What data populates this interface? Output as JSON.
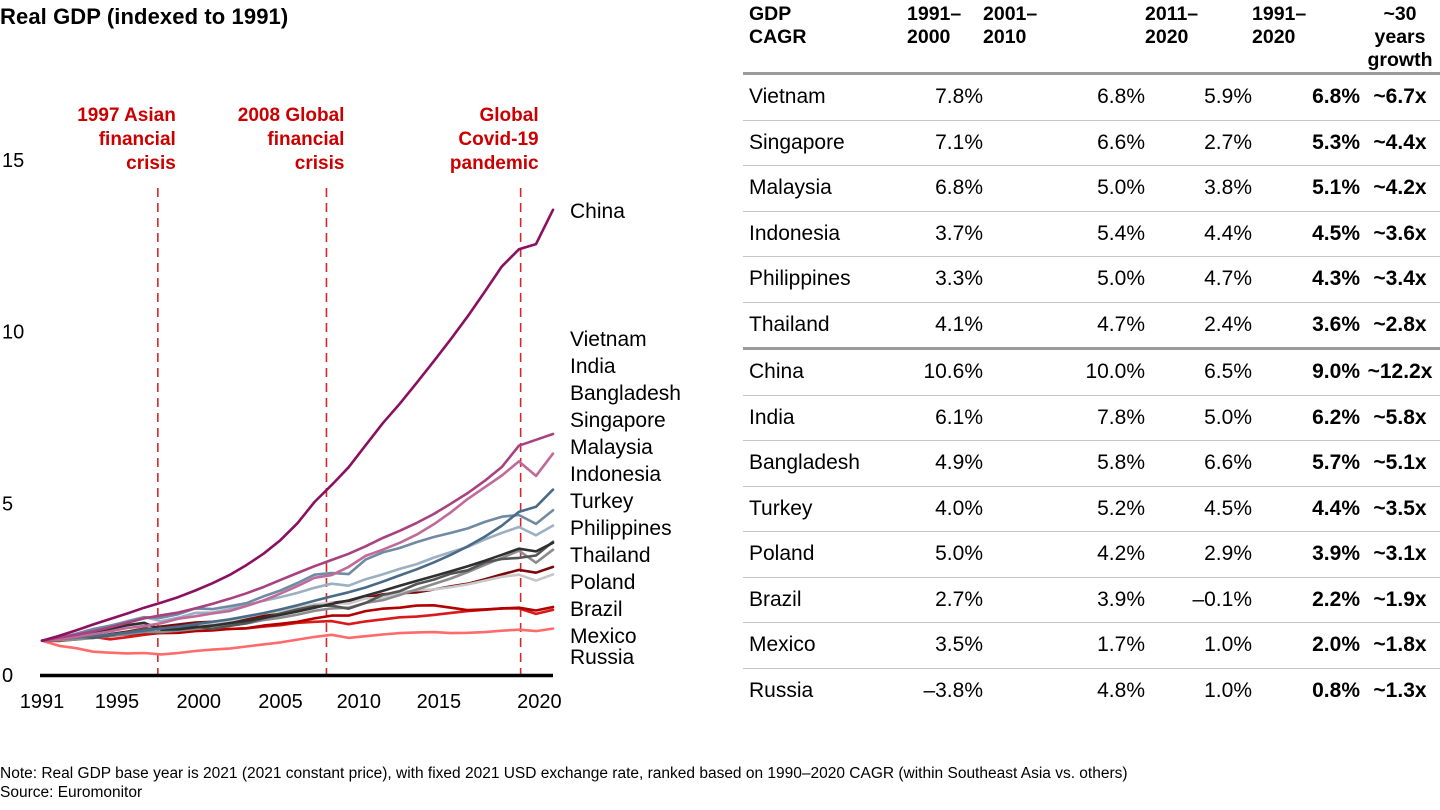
{
  "chart_data": {
    "type": "line",
    "title": "Real GDP (indexed to 1991)",
    "xlabel": "",
    "ylabel": "",
    "xlim": [
      1991,
      2021
    ],
    "ylim": [
      0,
      15
    ],
    "x_ticks": [
      "1991",
      "1995",
      "2000",
      "2005",
      "2010",
      "2015",
      "2020"
    ],
    "x_tick_years": [
      1991,
      1995.4,
      2000.2,
      2005,
      2009.6,
      2014.3,
      2020.2
    ],
    "y_ticks": [
      "0",
      "5",
      "10",
      "15"
    ],
    "y_tick_values": [
      0,
      5,
      10,
      15
    ],
    "grid": false,
    "events": [
      {
        "year": 1997,
        "label_lines": [
          "1997 Asian",
          "financial",
          "crisis"
        ],
        "color": "#cc0000"
      },
      {
        "year": 2008,
        "label_lines": [
          "2008 Global",
          "financial",
          "crisis"
        ],
        "color": "#cc0000"
      },
      {
        "year": 2020,
        "label_lines": [
          "Global",
          "Covid-19",
          "pandemic"
        ],
        "color": "#cc0000"
      }
    ],
    "x": [
      1991,
      1992,
      1993,
      1994,
      1995,
      1996,
      1997,
      1998,
      1999,
      2000,
      2001,
      2002,
      2003,
      2004,
      2005,
      2006,
      2007,
      2008,
      2009,
      2010,
      2011,
      2012,
      2013,
      2014,
      2015,
      2016,
      2017,
      2018,
      2019,
      2020,
      2021
    ],
    "series": [
      {
        "name": "China",
        "color": "#8b1060",
        "values": [
          1.0,
          1.14,
          1.3,
          1.47,
          1.63,
          1.79,
          1.96,
          2.11,
          2.27,
          2.46,
          2.67,
          2.91,
          3.2,
          3.53,
          3.93,
          4.42,
          5.04,
          5.53,
          6.05,
          6.69,
          7.33,
          7.9,
          8.51,
          9.14,
          9.78,
          10.45,
          11.17,
          11.9,
          12.4,
          12.55,
          13.55
        ]
      },
      {
        "name": "Vietnam",
        "color": "#a8417f",
        "values": [
          1.0,
          1.09,
          1.17,
          1.27,
          1.39,
          1.52,
          1.65,
          1.74,
          1.82,
          1.94,
          2.07,
          2.22,
          2.38,
          2.56,
          2.77,
          2.97,
          3.17,
          3.35,
          3.53,
          3.75,
          3.99,
          4.2,
          4.43,
          4.69,
          4.99,
          5.3,
          5.66,
          6.06,
          6.68,
          6.85,
          7.02
        ]
      },
      {
        "name": "India",
        "color": "#c06a9a",
        "values": [
          1.0,
          1.05,
          1.11,
          1.19,
          1.27,
          1.37,
          1.42,
          1.51,
          1.64,
          1.71,
          1.79,
          1.86,
          2.01,
          2.17,
          2.37,
          2.59,
          2.83,
          2.91,
          3.15,
          3.47,
          3.65,
          3.85,
          4.09,
          4.39,
          4.74,
          5.13,
          5.47,
          5.81,
          6.22,
          5.8,
          6.45
        ]
      },
      {
        "name": "Bangladesh",
        "color": "#4a6b88",
        "values": [
          1.0,
          1.05,
          1.09,
          1.13,
          1.18,
          1.23,
          1.29,
          1.35,
          1.41,
          1.48,
          1.55,
          1.62,
          1.71,
          1.8,
          1.91,
          2.03,
          2.16,
          2.29,
          2.41,
          2.55,
          2.72,
          2.9,
          3.08,
          3.28,
          3.5,
          3.75,
          4.03,
          4.35,
          4.75,
          4.9,
          5.4
        ]
      },
      {
        "name": "Singapore",
        "color": "#6f8aa2",
        "values": [
          1.0,
          1.07,
          1.2,
          1.34,
          1.44,
          1.55,
          1.68,
          1.67,
          1.77,
          1.94,
          1.92,
          2.0,
          2.09,
          2.29,
          2.46,
          2.68,
          2.92,
          2.97,
          2.94,
          3.36,
          3.57,
          3.7,
          3.87,
          4.02,
          4.14,
          4.27,
          4.46,
          4.61,
          4.66,
          4.4,
          4.8
        ]
      },
      {
        "name": "Malaysia",
        "color": "#9bb0c1",
        "values": [
          1.0,
          1.09,
          1.2,
          1.31,
          1.43,
          1.57,
          1.69,
          1.57,
          1.67,
          1.81,
          1.82,
          1.92,
          2.03,
          2.16,
          2.27,
          2.39,
          2.54,
          2.66,
          2.6,
          2.79,
          2.93,
          3.09,
          3.23,
          3.42,
          3.58,
          3.73,
          3.95,
          4.14,
          4.31,
          4.07,
          4.35
        ]
      },
      {
        "name": "Indonesia",
        "color": "#2f2f2f",
        "values": [
          1.0,
          1.07,
          1.15,
          1.24,
          1.34,
          1.45,
          1.52,
          1.32,
          1.33,
          1.39,
          1.44,
          1.51,
          1.58,
          1.66,
          1.75,
          1.85,
          1.96,
          2.07,
          2.17,
          2.31,
          2.45,
          2.6,
          2.74,
          2.88,
          3.02,
          3.17,
          3.33,
          3.5,
          3.68,
          3.6,
          3.85
        ]
      },
      {
        "name": "Turkey",
        "color": "#555555",
        "values": [
          1.0,
          1.06,
          1.14,
          1.08,
          1.16,
          1.24,
          1.34,
          1.37,
          1.33,
          1.42,
          1.34,
          1.43,
          1.51,
          1.65,
          1.79,
          1.91,
          2.01,
          2.02,
          1.93,
          2.1,
          2.33,
          2.44,
          2.65,
          2.78,
          2.95,
          3.05,
          3.28,
          3.38,
          3.41,
          3.48,
          3.88
        ]
      },
      {
        "name": "Philippines",
        "color": "#8c8c8c",
        "values": [
          1.0,
          1.01,
          1.03,
          1.08,
          1.13,
          1.19,
          1.25,
          1.25,
          1.29,
          1.34,
          1.38,
          1.43,
          1.5,
          1.6,
          1.67,
          1.76,
          1.87,
          1.94,
          1.96,
          2.1,
          2.18,
          2.33,
          2.49,
          2.65,
          2.81,
          3.0,
          3.21,
          3.41,
          3.62,
          3.27,
          3.65
        ]
      },
      {
        "name": "Thailand",
        "color": "#c8c8c8",
        "values": [
          1.0,
          1.08,
          1.17,
          1.27,
          1.38,
          1.47,
          1.45,
          1.34,
          1.4,
          1.46,
          1.5,
          1.58,
          1.69,
          1.79,
          1.87,
          1.96,
          2.06,
          2.1,
          2.08,
          2.23,
          2.24,
          2.4,
          2.47,
          2.49,
          2.56,
          2.64,
          2.75,
          2.86,
          2.92,
          2.75,
          2.93
        ]
      },
      {
        "name": "Poland",
        "color": "#7a0a0a",
        "values": [
          1.0,
          1.02,
          1.06,
          1.11,
          1.19,
          1.26,
          1.35,
          1.41,
          1.47,
          1.53,
          1.55,
          1.58,
          1.64,
          1.72,
          1.78,
          1.89,
          2.02,
          2.1,
          2.16,
          2.24,
          2.35,
          2.38,
          2.41,
          2.49,
          2.58,
          2.66,
          2.79,
          2.93,
          3.06,
          2.98,
          3.15
        ]
      },
      {
        "name": "Brazil",
        "color": "#b30000",
        "values": [
          1.0,
          0.99,
          1.04,
          1.1,
          1.15,
          1.18,
          1.22,
          1.22,
          1.23,
          1.28,
          1.3,
          1.34,
          1.36,
          1.44,
          1.49,
          1.55,
          1.65,
          1.73,
          1.73,
          1.86,
          1.93,
          1.96,
          2.02,
          2.03,
          1.96,
          1.89,
          1.91,
          1.94,
          1.96,
          1.88,
          1.98
        ]
      },
      {
        "name": "Mexico",
        "color": "#d91a1a",
        "values": [
          1.0,
          1.04,
          1.06,
          1.11,
          1.04,
          1.1,
          1.17,
          1.23,
          1.27,
          1.34,
          1.34,
          1.34,
          1.36,
          1.41,
          1.45,
          1.52,
          1.55,
          1.57,
          1.48,
          1.56,
          1.62,
          1.68,
          1.7,
          1.75,
          1.81,
          1.86,
          1.9,
          1.94,
          1.94,
          1.78,
          1.9
        ]
      },
      {
        "name": "Russia",
        "color": "#ff6b6b",
        "values": [
          1.0,
          0.85,
          0.78,
          0.68,
          0.65,
          0.63,
          0.64,
          0.6,
          0.64,
          0.7,
          0.74,
          0.77,
          0.83,
          0.89,
          0.95,
          1.03,
          1.11,
          1.17,
          1.08,
          1.13,
          1.18,
          1.22,
          1.24,
          1.25,
          1.22,
          1.23,
          1.25,
          1.29,
          1.32,
          1.28,
          1.35
        ]
      }
    ],
    "series_labels": [
      "China",
      "Vietnam",
      "India",
      "Bangladesh",
      "Singapore",
      "Malaysia",
      "Indonesia",
      "Turkey",
      "Philippines",
      "Thailand",
      "Poland",
      "Brazil",
      "Mexico",
      "Russia"
    ],
    "axis_color": "#000000",
    "event_line_color": "#d62728"
  },
  "table": {
    "headers": [
      {
        "line1": "GDP",
        "line2": "CAGR"
      },
      {
        "line1": "1991–",
        "line2": "2000"
      },
      {
        "line1": "2001–",
        "line2": "2010"
      },
      {
        "line1": "2011–",
        "line2": "2020"
      },
      {
        "line1": "1991–",
        "line2": "2020"
      },
      {
        "line1": "~30 years",
        "line2": "growth"
      }
    ],
    "rows": [
      {
        "country": "Vietnam",
        "c1": "7.8%",
        "c2": "6.8%",
        "c3": "5.9%",
        "c4": "6.8%",
        "growth": "~6.7x"
      },
      {
        "country": "Singapore",
        "c1": "7.1%",
        "c2": "6.6%",
        "c3": "2.7%",
        "c4": "5.3%",
        "growth": "~4.4x"
      },
      {
        "country": "Malaysia",
        "c1": "6.8%",
        "c2": "5.0%",
        "c3": "3.8%",
        "c4": "5.1%",
        "growth": "~4.2x"
      },
      {
        "country": "Indonesia",
        "c1": "3.7%",
        "c2": "5.4%",
        "c3": "4.4%",
        "c4": "4.5%",
        "growth": "~3.6x"
      },
      {
        "country": "Philippines",
        "c1": "3.3%",
        "c2": "5.0%",
        "c3": "4.7%",
        "c4": "4.3%",
        "growth": "~3.4x"
      },
      {
        "country": "Thailand",
        "c1": "4.1%",
        "c2": "4.7%",
        "c3": "2.4%",
        "c4": "3.6%",
        "growth": "~2.8x"
      },
      {
        "country": "China",
        "c1": "10.6%",
        "c2": "10.0%",
        "c3": "6.5%",
        "c4": "9.0%",
        "growth": "~12.2x"
      },
      {
        "country": "India",
        "c1": "6.1%",
        "c2": "7.8%",
        "c3": "5.0%",
        "c4": "6.2%",
        "growth": "~5.8x"
      },
      {
        "country": "Bangladesh",
        "c1": "4.9%",
        "c2": "5.8%",
        "c3": "6.6%",
        "c4": "5.7%",
        "growth": "~5.1x"
      },
      {
        "country": "Turkey",
        "c1": "4.0%",
        "c2": "5.2%",
        "c3": "4.5%",
        "c4": "4.4%",
        "growth": "~3.5x"
      },
      {
        "country": "Poland",
        "c1": "5.0%",
        "c2": "4.2%",
        "c3": "2.9%",
        "c4": "3.9%",
        "growth": "~3.1x"
      },
      {
        "country": "Brazil",
        "c1": "2.7%",
        "c2": "3.9%",
        "c3": "–0.1%",
        "c4": "2.2%",
        "growth": "~1.9x"
      },
      {
        "country": "Mexico",
        "c1": "3.5%",
        "c2": "1.7%",
        "c3": "1.0%",
        "c4": "2.0%",
        "growth": "~1.8x"
      },
      {
        "country": "Russia",
        "c1": "–3.8%",
        "c2": "4.8%",
        "c3": "1.0%",
        "c4": "0.8%",
        "growth": "~1.3x"
      }
    ]
  },
  "footnote": {
    "note": "Note: Real GDP base year is 2021 (2021 constant price), with fixed 2021 USD exchange rate, ranked based on 1990–2020 CAGR (within Southeast Asia vs. others)",
    "source": "Source: Euromonitor"
  }
}
